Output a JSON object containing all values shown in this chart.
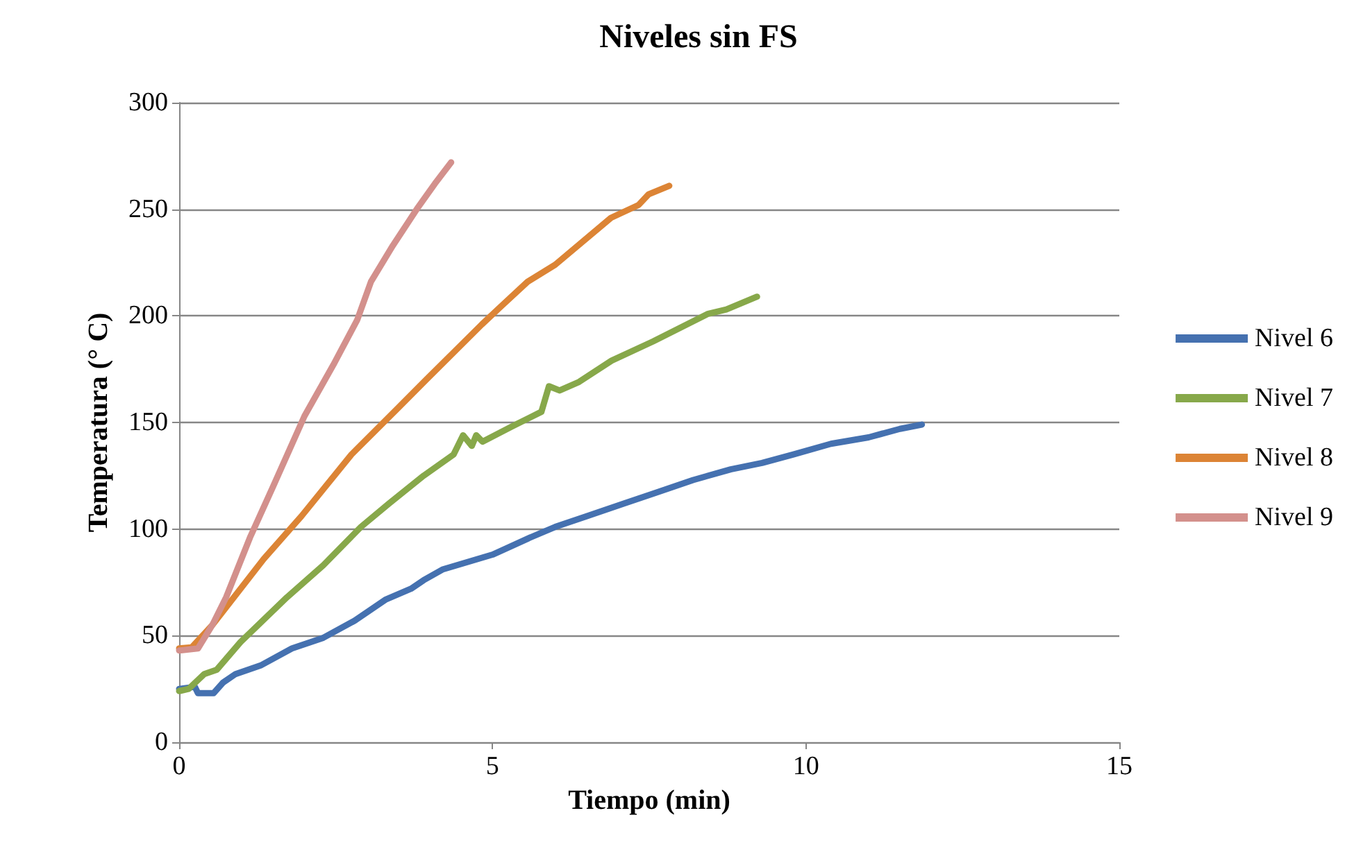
{
  "chart_data": {
    "type": "line",
    "title": "Niveles sin FS",
    "xlabel": "Tiempo (min)",
    "ylabel": "Temperatura (° C)",
    "xlim": [
      0,
      15
    ],
    "xticks": [
      0,
      5,
      10,
      15
    ],
    "ylim": [
      0,
      300
    ],
    "yticks": [
      0,
      50,
      100,
      150,
      200,
      250,
      300
    ],
    "grid": "y",
    "legend": "right",
    "marker": "none",
    "line_style": "solid",
    "series": [
      {
        "name": "Nivel 6",
        "color": "#4571b0",
        "x": [
          0,
          0.25,
          0.3,
          0.55,
          0.7,
          0.9,
          1.3,
          1.8,
          2.3,
          2.8,
          3.3,
          3.7,
          3.9,
          4.2,
          5,
          5.6,
          6,
          6.5,
          7.1,
          7.6,
          8.2,
          8.8,
          9.3,
          9.8,
          10.4,
          11,
          11.5,
          11.85
        ],
        "values": [
          25,
          26,
          23,
          23,
          28,
          32,
          36,
          44,
          49,
          57,
          67,
          72,
          76,
          81,
          88,
          96,
          101,
          106,
          112,
          117,
          123,
          128,
          131,
          135,
          140,
          143,
          147,
          149
        ]
      },
      {
        "name": "Nivel 7",
        "color": "#87a84a",
        "x": [
          0,
          0.15,
          0.4,
          0.6,
          0.98,
          1.72,
          2.3,
          2.9,
          3.35,
          3.9,
          4.38,
          4.53,
          4.67,
          4.74,
          4.84,
          5.3,
          5.78,
          5.9,
          6.07,
          6.38,
          6.9,
          7.56,
          8.44,
          8.73,
          9.22
        ],
        "values": [
          24,
          25,
          32,
          34,
          47,
          68,
          83,
          101,
          112,
          125,
          135,
          144,
          139,
          144,
          141,
          148,
          155,
          167,
          165,
          169,
          179,
          188,
          201,
          203,
          209
        ]
      },
      {
        "name": "Nivel 8",
        "color": "#dc8435",
        "x": [
          0,
          0.2,
          0.53,
          1.35,
          1.95,
          2.75,
          3.5,
          3.94,
          4.83,
          5.12,
          5.56,
          6.0,
          6.89,
          7.33,
          7.49,
          7.82
        ],
        "values": [
          44,
          44.5,
          55,
          86,
          106,
          135,
          157,
          170,
          196,
          204,
          216,
          224,
          246,
          252,
          257,
          261
        ]
      },
      {
        "name": "Nivel 9",
        "color": "#d3908c",
        "x": [
          0,
          0.3,
          0.53,
          0.75,
          1.13,
          1.5,
          2.0,
          2.46,
          2.84,
          3.06,
          3.41,
          3.79,
          4.08,
          4.34
        ],
        "values": [
          43,
          44,
          55,
          68,
          96,
          120,
          153,
          177,
          198,
          216,
          233,
          250,
          262,
          272
        ]
      }
    ]
  }
}
